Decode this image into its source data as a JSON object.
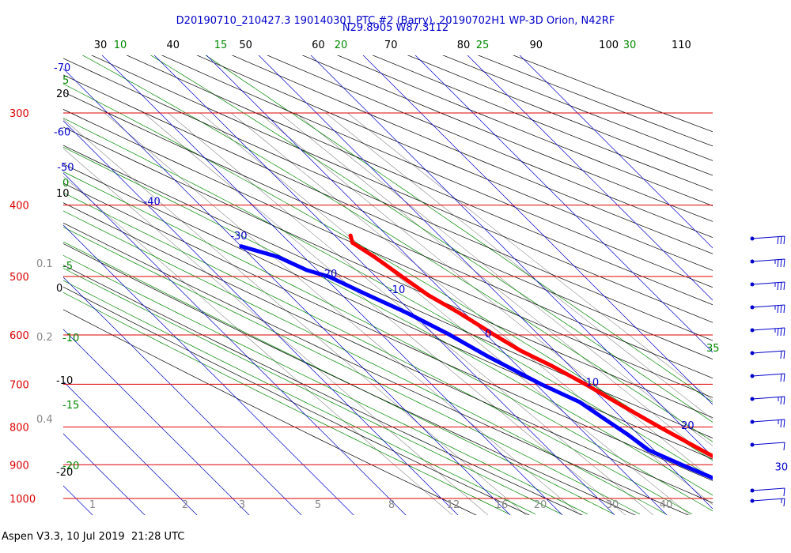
{
  "header": {
    "title_line1": "D20190710_210427.3 190140301 PTC #2 (Barry), 20190702H1 WP-3D Orion, N42RF",
    "title_line2": "N29.8905 W87.3112"
  },
  "footer": {
    "text": "Aspen V3.3, 10 Jul 2019  21:28 UTC"
  },
  "colors": {
    "isobar": "#dd0000",
    "isotherm": "#0000cc",
    "dry_adiabat": "#000000",
    "moist_adiabat": "#008800",
    "mixing_ratio": "#888888",
    "temperature": "#ff0000",
    "dewpoint": "#0000ff",
    "wind_barb": "#0000cc"
  },
  "chart_data": {
    "type": "skew-t",
    "pressure_levels_hPa": [
      300,
      400,
      500,
      600,
      700,
      800,
      900,
      1000
    ],
    "pressure_labels": [
      "300",
      "400",
      "500",
      "600",
      "700",
      "800",
      "900",
      "1000"
    ],
    "top_temperature_labels_F": [
      "30",
      "40",
      "50",
      "60",
      "70",
      "80",
      "90",
      "100",
      "110"
    ],
    "top_theta_e_labels_C": [
      "10",
      "15",
      "20",
      "25",
      "30"
    ],
    "isotherm_labels_C": [
      "-70",
      "-60",
      "-50",
      "-40",
      "-30",
      "-20",
      "-10",
      "0",
      "10",
      "20",
      "30"
    ],
    "left_theta_e_labels": [
      "5",
      "0",
      "-5",
      "-10",
      "-15",
      "-20",
      "35"
    ],
    "left_dry_adiabat_labels": [
      "20",
      "10",
      "0",
      "-10",
      "-20"
    ],
    "left_mixing_labels": [
      "0.1",
      "0.2",
      "0.4"
    ],
    "bottom_mixing_ratio_labels": [
      "1",
      "2",
      "3",
      "5",
      "8",
      "12",
      "16",
      "20",
      "30",
      "40"
    ],
    "temperature_profile": [
      {
        "p": 440,
        "t": -7.0
      },
      {
        "p": 450,
        "t": -8.0
      },
      {
        "p": 470,
        "t": -6.5
      },
      {
        "p": 500,
        "t": -5.0
      },
      {
        "p": 530,
        "t": -3.5
      },
      {
        "p": 560,
        "t": -1.0
      },
      {
        "p": 600,
        "t": 1.5
      },
      {
        "p": 630,
        "t": 3.5
      },
      {
        "p": 660,
        "t": 6.5
      },
      {
        "p": 700,
        "t": 9.5
      },
      {
        "p": 750,
        "t": 12.5
      },
      {
        "p": 800,
        "t": 15.5
      },
      {
        "p": 850,
        "t": 18.5
      },
      {
        "p": 900,
        "t": 21.5
      },
      {
        "p": 950,
        "t": 23.5
      },
      {
        "p": 1000,
        "t": 26.5
      },
      {
        "p": 1010,
        "t": 28.5
      }
    ],
    "dewpoint_profile": [
      {
        "p": 455,
        "td": -30.0
      },
      {
        "p": 470,
        "td": -25.0
      },
      {
        "p": 490,
        "td": -22.0
      },
      {
        "p": 500,
        "td": -19.0
      },
      {
        "p": 530,
        "td": -15.0
      },
      {
        "p": 560,
        "td": -11.0
      },
      {
        "p": 600,
        "td": -7.0
      },
      {
        "p": 640,
        "td": -4.0
      },
      {
        "p": 700,
        "td": 1.0
      },
      {
        "p": 740,
        "td": 5.0
      },
      {
        "p": 780,
        "td": 6.5
      },
      {
        "p": 820,
        "td": 8.0
      },
      {
        "p": 860,
        "td": 9.0
      },
      {
        "p": 900,
        "td": 12.5
      },
      {
        "p": 950,
        "td": 17.0
      },
      {
        "p": 975,
        "td": 19.5
      },
      {
        "p": 1005,
        "td": 19.0
      }
    ],
    "wind_profile": [
      {
        "p": 450,
        "spd_kt": 30
      },
      {
        "p": 500,
        "spd_kt": 25
      },
      {
        "p": 550,
        "spd_kt": 25
      },
      {
        "p": 600,
        "spd_kt": 25
      },
      {
        "p": 650,
        "spd_kt": 25
      },
      {
        "p": 700,
        "spd_kt": 20
      },
      {
        "p": 750,
        "spd_kt": 20
      },
      {
        "p": 800,
        "spd_kt": 15
      },
      {
        "p": 850,
        "spd_kt": 15
      },
      {
        "p": 900,
        "spd_kt": 10
      },
      {
        "p": 975,
        "spd_kt": 10
      },
      {
        "p": 1000,
        "spd_kt": 5
      }
    ]
  }
}
